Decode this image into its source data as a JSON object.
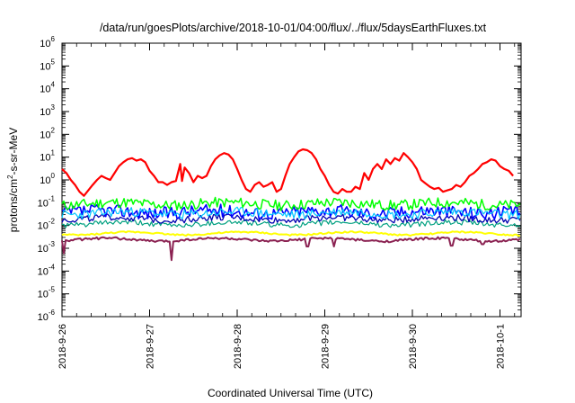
{
  "chart_data": {
    "type": "line",
    "title": "/data/run/goesPlots/archive/2018-10-01/04:00/flux/../flux/5daysEarthFluxes.txt",
    "xlabel": "Coordinated Universal Time (UTC)",
    "ylabel": {
      "prefix": "protons/cm",
      "superscript": "2",
      "suffix": "-s-sr-MeV"
    },
    "y_scale": "log",
    "ylim": [
      1e-06,
      1000000.0
    ],
    "y_ticks": [
      {
        "value": 1e-06,
        "base": "10",
        "exp": "-6"
      },
      {
        "value": 1e-05,
        "base": "10",
        "exp": "-5"
      },
      {
        "value": 0.0001,
        "base": "10",
        "exp": "-4"
      },
      {
        "value": 0.001,
        "base": "10",
        "exp": "-3"
      },
      {
        "value": 0.01,
        "base": "10",
        "exp": "-2"
      },
      {
        "value": 0.1,
        "base": "10",
        "exp": "-1"
      },
      {
        "value": 1.0,
        "base": "10",
        "exp": "0"
      },
      {
        "value": 10.0,
        "base": "10",
        "exp": "1"
      },
      {
        "value": 100.0,
        "base": "10",
        "exp": "2"
      },
      {
        "value": 1000.0,
        "base": "10",
        "exp": "3"
      },
      {
        "value": 10000.0,
        "base": "10",
        "exp": "4"
      },
      {
        "value": 100000.0,
        "base": "10",
        "exp": "5"
      },
      {
        "value": 1000000.0,
        "base": "10",
        "exp": "6"
      }
    ],
    "x_range_days": [
      "2018-09-26T00:00",
      "2018-10-01T04:00"
    ],
    "x_ticks": [
      {
        "label": "2018-9-26",
        "day": 0
      },
      {
        "label": "2018-9-27",
        "day": 1
      },
      {
        "label": "2018-9-28",
        "day": 2
      },
      {
        "label": "2018-9-29",
        "day": 3
      },
      {
        "label": "2018-9-30",
        "day": 4
      },
      {
        "label": "2018-10-1",
        "day": 5
      }
    ],
    "grid": false,
    "legend": "none",
    "series": [
      {
        "color": "#ff0000",
        "width": 2.2,
        "points": [
          [
            0.0,
            3.0
          ],
          [
            0.05,
            2.0
          ],
          [
            0.1,
            1.0
          ],
          [
            0.15,
            0.6
          ],
          [
            0.2,
            0.3
          ],
          [
            0.25,
            0.2
          ],
          [
            0.3,
            0.35
          ],
          [
            0.35,
            0.6
          ],
          [
            0.4,
            1.0
          ],
          [
            0.45,
            1.5
          ],
          [
            0.5,
            1.2
          ],
          [
            0.55,
            1.0
          ],
          [
            0.6,
            2.0
          ],
          [
            0.65,
            4.0
          ],
          [
            0.7,
            6.0
          ],
          [
            0.75,
            8.0
          ],
          [
            0.8,
            9.0
          ],
          [
            0.85,
            7.0
          ],
          [
            0.9,
            8.0
          ],
          [
            0.95,
            6.0
          ],
          [
            1.0,
            2.5
          ],
          [
            1.05,
            1.5
          ],
          [
            1.1,
            0.8
          ],
          [
            1.15,
            0.8
          ],
          [
            1.2,
            0.6
          ],
          [
            1.25,
            0.8
          ],
          [
            1.3,
            0.9
          ],
          [
            1.35,
            5.0
          ],
          [
            1.37,
            0.9
          ],
          [
            1.4,
            3.5
          ],
          [
            1.45,
            2.0
          ],
          [
            1.5,
            0.8
          ],
          [
            1.55,
            1.5
          ],
          [
            1.6,
            1.2
          ],
          [
            1.65,
            1.5
          ],
          [
            1.7,
            4.0
          ],
          [
            1.75,
            8.0
          ],
          [
            1.8,
            12.0
          ],
          [
            1.85,
            15.0
          ],
          [
            1.9,
            13.0
          ],
          [
            1.95,
            8.0
          ],
          [
            2.0,
            3.0
          ],
          [
            2.05,
            1.0
          ],
          [
            2.1,
            0.4
          ],
          [
            2.15,
            0.3
          ],
          [
            2.2,
            0.6
          ],
          [
            2.25,
            0.8
          ],
          [
            2.3,
            0.5
          ],
          [
            2.35,
            0.6
          ],
          [
            2.4,
            0.8
          ],
          [
            2.45,
            0.3
          ],
          [
            2.5,
            0.4
          ],
          [
            2.55,
            1.5
          ],
          [
            2.6,
            5.0
          ],
          [
            2.65,
            10.0
          ],
          [
            2.7,
            18.0
          ],
          [
            2.75,
            22.0
          ],
          [
            2.8,
            20.0
          ],
          [
            2.85,
            15.0
          ],
          [
            2.9,
            8.0
          ],
          [
            2.95,
            3.0
          ],
          [
            3.0,
            1.5
          ],
          [
            3.05,
            0.6
          ],
          [
            3.1,
            0.3
          ],
          [
            3.15,
            0.25
          ],
          [
            3.2,
            0.4
          ],
          [
            3.25,
            0.3
          ],
          [
            3.3,
            0.3
          ],
          [
            3.35,
            0.5
          ],
          [
            3.4,
            0.4
          ],
          [
            3.45,
            2.0
          ],
          [
            3.5,
            1.0
          ],
          [
            3.55,
            3.0
          ],
          [
            3.6,
            5.0
          ],
          [
            3.65,
            3.0
          ],
          [
            3.7,
            8.0
          ],
          [
            3.75,
            5.0
          ],
          [
            3.8,
            9.0
          ],
          [
            3.85,
            7.0
          ],
          [
            3.9,
            15.0
          ],
          [
            3.95,
            10.0
          ],
          [
            4.0,
            6.0
          ],
          [
            4.05,
            3.0
          ],
          [
            4.1,
            1.0
          ],
          [
            4.15,
            0.7
          ],
          [
            4.2,
            0.5
          ],
          [
            4.25,
            0.4
          ],
          [
            4.3,
            0.45
          ],
          [
            4.35,
            0.3
          ],
          [
            4.4,
            0.35
          ],
          [
            4.45,
            0.4
          ],
          [
            4.5,
            0.6
          ],
          [
            4.55,
            0.5
          ],
          [
            4.6,
            0.8
          ],
          [
            4.65,
            1.5
          ],
          [
            4.7,
            2.0
          ],
          [
            4.75,
            3.0
          ],
          [
            4.8,
            5.0
          ],
          [
            4.85,
            6.0
          ],
          [
            4.9,
            8.0
          ],
          [
            4.95,
            7.0
          ],
          [
            5.0,
            4.0
          ],
          [
            5.05,
            3.0
          ],
          [
            5.1,
            2.5
          ],
          [
            5.15,
            1.5
          ]
        ]
      },
      {
        "color": "#00ff00",
        "width": 1.5,
        "center": 0.09,
        "amp": 1.7,
        "seed": 11
      },
      {
        "color": "#00c8ff",
        "width": 1.2,
        "center": 0.035,
        "amp": 1.6,
        "seed": 23
      },
      {
        "color": "#0000ff",
        "width": 1.6,
        "center": 0.04,
        "amp": 1.9,
        "seed": 37
      },
      {
        "color": "#0000b0",
        "width": 1.3,
        "center": 0.02,
        "amp": 1.4,
        "seed": 49
      },
      {
        "color": "#00a080",
        "width": 1.2,
        "center": 0.012,
        "amp": 1.3,
        "seed": 61
      },
      {
        "color": "#ffff00",
        "width": 2.0,
        "center": 0.0045,
        "amp": 1.08,
        "seed": 73
      },
      {
        "color": "#8b2252",
        "width": 2.0,
        "center": 0.0024,
        "amp": 1.12,
        "seed": 87,
        "dips": [
          [
            0.02,
            0.0006
          ],
          [
            1.25,
            0.0003
          ],
          [
            2.8,
            0.0012
          ],
          [
            3.1,
            0.0012
          ],
          [
            4.45,
            0.0013
          ],
          [
            4.8,
            0.0015
          ]
        ]
      }
    ]
  }
}
